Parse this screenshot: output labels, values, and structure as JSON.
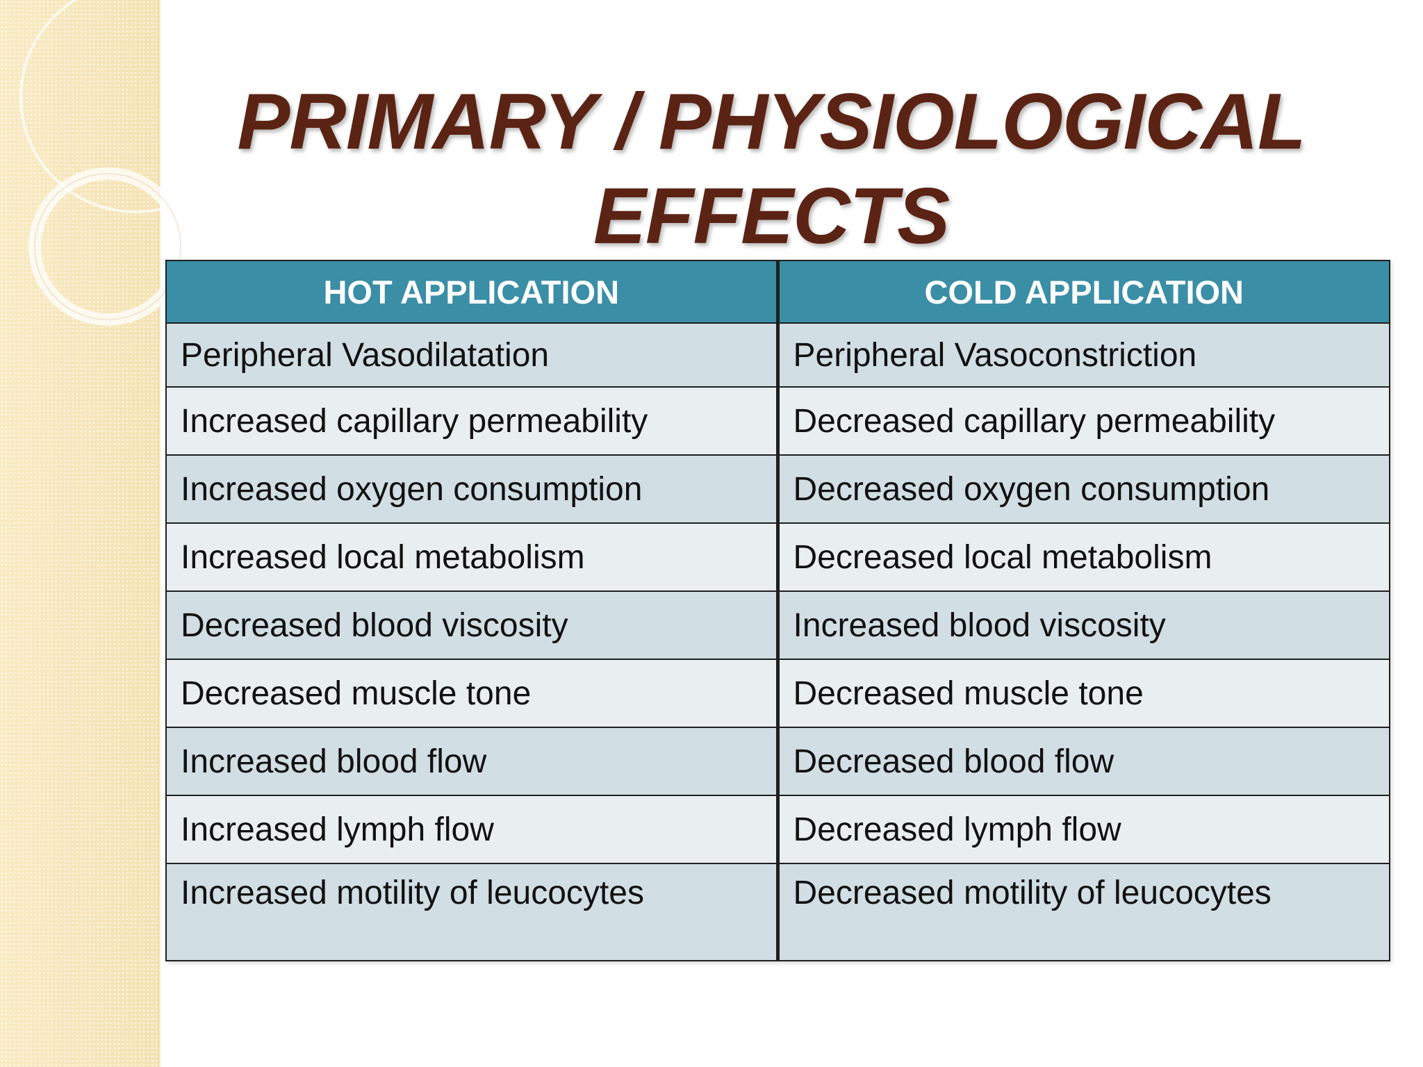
{
  "slide": {
    "title_line1": "PRIMARY / PHYSIOLOGICAL",
    "title_line2": "EFFECTS"
  },
  "table": {
    "headers": [
      "HOT APPLICATION",
      "COLD APPLICATION"
    ],
    "rows": [
      [
        "Peripheral Vasodilatation",
        "Peripheral Vasoconstriction"
      ],
      [
        "Increased capillary permeability",
        "Decreased capillary permeability"
      ],
      [
        "Increased oxygen consumption",
        "Decreased oxygen consumption"
      ],
      [
        "Increased local metabolism",
        "Decreased local metabolism"
      ],
      [
        "Decreased blood viscosity",
        "Increased blood viscosity"
      ],
      [
        "Decreased muscle tone",
        "Decreased muscle tone"
      ],
      [
        "Increased blood flow",
        "Decreased blood flow"
      ],
      [
        "Increased lymph flow",
        "Decreased lymph flow"
      ],
      [
        "Increased motility of leucocytes",
        "Decreased motility of leucocytes"
      ]
    ]
  },
  "theme": {
    "title_color": "#5b2314",
    "header_bg": "#3a8ea6",
    "row_dark": "#d1dee3",
    "row_light": "#e9eef1",
    "strip_color": "#f6e6bb"
  }
}
